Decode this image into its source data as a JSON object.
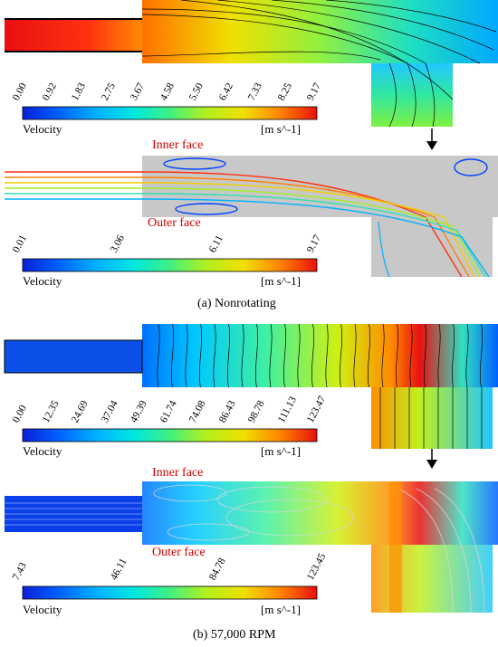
{
  "panels": [
    {
      "caption": "(a) Nonrotating",
      "contour_legend": {
        "ticks": [
          "0.00",
          "0.92",
          "1.83",
          "2.75",
          "3.67",
          "4.58",
          "5.50",
          "6.42",
          "7.33",
          "8.25",
          "9.17"
        ],
        "label": "Velocity",
        "unit": "[m s^-1]"
      },
      "streamline_legend": {
        "ticks": [
          "0.01",
          "3.06",
          "6.11",
          "9.17"
        ],
        "label": "Velocity",
        "unit": "[m s^-1]"
      },
      "inner_face": "Inner face",
      "outer_face": "Outer face"
    },
    {
      "caption": "(b) 57,000 RPM",
      "contour_legend": {
        "ticks": [
          "0.00",
          "12.35",
          "24.69",
          "37.04",
          "49.39",
          "61.74",
          "74.08",
          "86.43",
          "98.78",
          "111.13",
          "123.47"
        ],
        "label": "Velocity",
        "unit": "[m s^-1]"
      },
      "streamline_legend": {
        "ticks": [
          "7.43",
          "46.11",
          "84.78",
          "123.45"
        ],
        "label": "Velocity",
        "unit": "[m s^-1]"
      },
      "inner_face": "Inner face",
      "outer_face": "Outer face"
    }
  ],
  "colors": {
    "jet": [
      "#0a1fd6",
      "#0060ff",
      "#00a8ff",
      "#00e0f0",
      "#20f0b0",
      "#6ef060",
      "#b4f020",
      "#f0e800",
      "#ffb000",
      "#ff6000",
      "#e81010"
    ],
    "face_label": "#d10000",
    "fluid_gray": "#c8c8c8"
  }
}
